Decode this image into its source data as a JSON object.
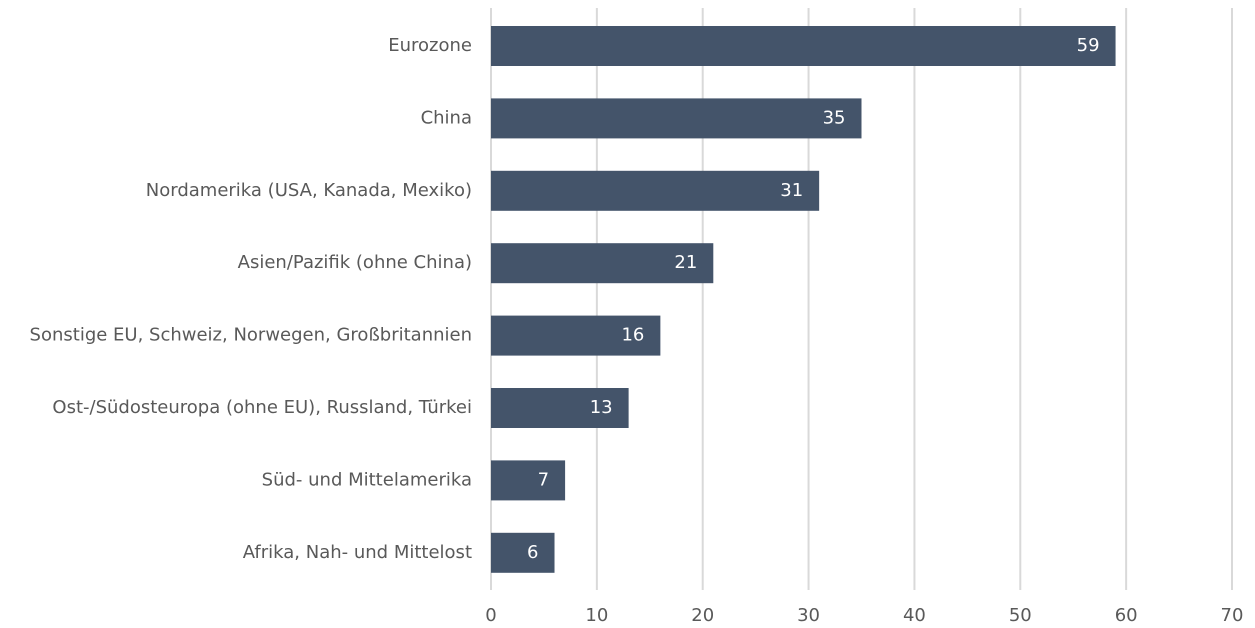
{
  "chart_data": {
    "type": "bar",
    "orientation": "horizontal",
    "categories": [
      "Eurozone",
      "China",
      "Nordamerika (USA, Kanada, Mexiko)",
      "Asien/Pazifik (ohne China)",
      "Sonstige EU, Schweiz, Norwegen, Großbritannien",
      "Ost-/Südosteuropa (ohne EU), Russland, Türkei",
      "Süd- und Mittelamerika",
      "Afrika, Nah- und Mittelost"
    ],
    "values": [
      59,
      35,
      31,
      21,
      16,
      13,
      7,
      6
    ],
    "color": "#44546a",
    "xlim": [
      0,
      70
    ],
    "xticks": [
      0,
      10,
      20,
      30,
      40,
      50,
      60,
      70
    ],
    "grid": true
  }
}
